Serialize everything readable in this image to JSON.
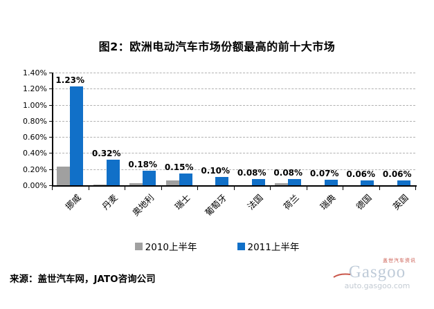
{
  "title": "图2：欧洲电动汽车市场份额最高的前十大市场",
  "chart_data": {
    "type": "bar",
    "title": "图2：欧洲电动汽车市场份额最高的前十大市场",
    "categories": [
      "挪威",
      "丹麦",
      "奥地利",
      "瑞士",
      "葡萄牙",
      "法国",
      "荷兰",
      "瑞典",
      "德国",
      "英国"
    ],
    "series": [
      {
        "name": "2010上半年",
        "color": "#a0a0a0",
        "values": [
          0.23,
          0.01,
          0.03,
          0.06,
          0,
          0,
          0.03,
          0,
          0,
          0
        ]
      },
      {
        "name": "2011上半年",
        "color": "#1170c8",
        "values": [
          1.23,
          0.32,
          0.18,
          0.15,
          0.1,
          0.08,
          0.08,
          0.07,
          0.06,
          0.06
        ]
      }
    ],
    "bar_labels": [
      "1.23%",
      "0.32%",
      "0.18%",
      "0.15%",
      "0.10%",
      "0.08%",
      "0.08%",
      "0.07%",
      "0.06%",
      "0.06%"
    ],
    "xlabel": "",
    "ylabel": "",
    "ylim": [
      0,
      1.4
    ],
    "y_tick_step": 0.2,
    "y_ticks": [
      "0.00%",
      "0.20%",
      "0.40%",
      "0.60%",
      "0.80%",
      "1.00%",
      "1.20%",
      "1.40%"
    ],
    "grid": true,
    "gridline_style": "dashed",
    "legend_position": "bottom"
  },
  "source": "来源：盖世汽车网，JATO咨询公司",
  "watermark": {
    "brand_cn": "盖世汽车资讯",
    "brand": "Gasgoo",
    "url": "auto.gasgoo.com"
  },
  "colors": {
    "series_2010": "#a0a0a0",
    "series_2011": "#1170c8",
    "grid": "#b0b0b0",
    "axis": "#000000",
    "watermark_brand": "#b4c3d2",
    "watermark_red": "#c0392b"
  }
}
